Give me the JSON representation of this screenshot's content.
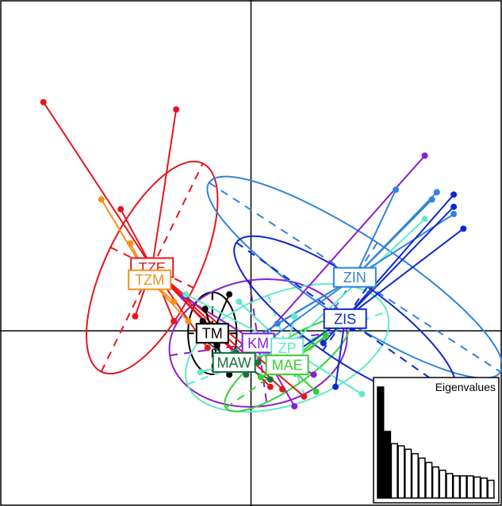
{
  "chart_data": {
    "type": "scatter",
    "title": "",
    "xlabel": "",
    "ylabel": "",
    "xlim": [
      -5.2,
      5.2
    ],
    "ylim": [
      -3.6,
      6.8
    ],
    "axes": {
      "x_zero_line": true,
      "y_zero_line": true,
      "grid": false
    },
    "groups": [
      {
        "label": "TZE",
        "color": "#e8151b",
        "center": [
          -2.05,
          1.3
        ],
        "ellipse": {
          "rx": 2.4,
          "ry": 0.95,
          "angle": -64
        },
        "points": [
          [
            -4.3,
            4.7
          ],
          [
            -1.55,
            4.55
          ],
          [
            -2.7,
            2.5
          ],
          [
            -2.4,
            0.3
          ],
          [
            -1.6,
            0.2
          ],
          [
            -1.9,
            0.9
          ],
          [
            -0.9,
            -0.35
          ],
          [
            0.4,
            -1.15
          ],
          [
            1.1,
            -1.35
          ],
          [
            0.65,
            -1.2
          ],
          [
            -0.1,
            -0.7
          ]
        ]
      },
      {
        "label": "TZM",
        "color": "#f5901e",
        "center": [
          -2.1,
          1.05
        ],
        "points": [
          [
            -3.1,
            2.7
          ],
          [
            -2.5,
            1.8
          ],
          [
            -2.0,
            1.1
          ],
          [
            -1.6,
            0.6
          ],
          [
            -1.3,
            0.2
          ]
        ]
      },
      {
        "label": "TM",
        "color": "#000000",
        "center": [
          -0.8,
          -0.05
        ],
        "ellipse": {
          "rx": 0.85,
          "ry": 0.5,
          "angle": 90
        },
        "points": [
          [
            -0.45,
            0.75
          ],
          [
            -0.95,
            0.45
          ],
          [
            -1.0,
            0.2
          ],
          [
            -0.7,
            -0.3
          ],
          [
            -0.45,
            -0.9
          ],
          [
            -0.7,
            -0.6
          ]
        ]
      },
      {
        "label": "KM",
        "color": "#8a1ed0",
        "center": [
          0.15,
          -0.25
        ],
        "ellipse": {
          "rx": 1.85,
          "ry": 1.3,
          "angle": -8
        },
        "points": [
          [
            3.6,
            3.6
          ],
          [
            1.1,
            -0.7
          ],
          [
            0.45,
            -0.6
          ],
          [
            -1.4,
            0.7
          ],
          [
            0.9,
            -1.55
          ],
          [
            1.3,
            -0.9
          ]
        ]
      },
      {
        "label": "ZP",
        "color": "#61e8cc",
        "center": [
          0.75,
          -0.35
        ],
        "ellipse": {
          "rx": 2.2,
          "ry": 1.15,
          "angle": -20
        },
        "points": [
          [
            -1.35,
            0.75
          ],
          [
            -0.25,
            0.6
          ],
          [
            0.9,
            0.3
          ],
          [
            3.6,
            2.3
          ],
          [
            2.3,
            -1.3
          ],
          [
            -1.05,
            -0.85
          ]
        ]
      },
      {
        "label": "MAW",
        "color": "#17713e",
        "center": [
          -0.35,
          -0.65
        ],
        "points": [
          [
            -0.95,
            -0.2
          ],
          [
            -0.3,
            -0.45
          ],
          [
            0.4,
            -1.0
          ],
          [
            -0.1,
            -0.9
          ],
          [
            0.15,
            -0.65
          ]
        ]
      },
      {
        "label": "MAE",
        "color": "#37cf33",
        "center": [
          0.75,
          -0.7
        ],
        "ellipse": {
          "rx": 1.55,
          "ry": 0.45,
          "angle": -35
        },
        "points": [
          [
            1.35,
            -1.25
          ],
          [
            0.2,
            -0.95
          ],
          [
            0.75,
            -0.85
          ],
          [
            1.55,
            -0.1
          ],
          [
            1.95,
            0.35
          ]
        ]
      },
      {
        "label": "ZIN",
        "color": "#2f84dd",
        "center": [
          2.15,
          1.1
        ],
        "ellipse": {
          "rx": 3.6,
          "ry": 0.85,
          "angle": 33
        },
        "points": [
          [
            3.0,
            2.9
          ],
          [
            3.75,
            2.7
          ],
          [
            3.85,
            2.85
          ],
          [
            4.2,
            2.4
          ],
          [
            -0.6,
            -0.55
          ],
          [
            -0.2,
            -0.6
          ],
          [
            0.55,
            0.15
          ]
        ]
      },
      {
        "label": "ZIS",
        "color": "#1027d0",
        "center": [
          1.95,
          0.25
        ],
        "ellipse": {
          "rx": 2.75,
          "ry": 0.8,
          "angle": 35
        },
        "points": [
          [
            4.2,
            2.8
          ],
          [
            4.2,
            2.55
          ],
          [
            4.4,
            2.1
          ],
          [
            1.75,
            -1.15
          ],
          [
            0.9,
            -0.45
          ],
          [
            1.5,
            -0.25
          ],
          [
            2.1,
            0.05
          ]
        ]
      }
    ],
    "eigenvalues": {
      "title": "Eigenvalues",
      "values": [
        1.0,
        0.6,
        0.49,
        0.47,
        0.44,
        0.4,
        0.36,
        0.32,
        0.28,
        0.25,
        0.22,
        0.2,
        0.2,
        0.2,
        0.19,
        0.18,
        0.16
      ],
      "highlighted": 2
    }
  }
}
